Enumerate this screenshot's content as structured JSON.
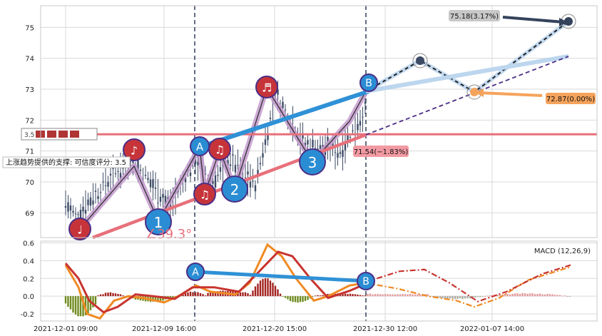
{
  "chart_data": [
    {
      "type": "candlestick",
      "y_ticks": [
        69,
        70,
        71,
        72,
        73,
        74,
        75
      ],
      "ylim": [
        68.2,
        75.7
      ],
      "x_tick_labels": [
        "2021-12-01 09:00",
        "2021-12-09 16:00",
        "2021-12-20 15:00",
        "2021-12-30 12:00",
        "2022-01-07 14:00"
      ],
      "support_line_label": "上涨趋势提供的支撑: 可信度评分: 3.5",
      "resistance_line_label": "3.5",
      "angle_label": "∠39.3°",
      "pivots": [
        {
          "label": "1",
          "kind": "number",
          "x": 2,
          "y": 68.7
        },
        {
          "label": "2",
          "kind": "number",
          "x": 29,
          "y": 69.95
        },
        {
          "label": "3",
          "kind": "number",
          "x": 48,
          "y": 70.95
        },
        {
          "label": "A",
          "kind": "letter",
          "x": 21,
          "y": 70.85
        },
        {
          "label": "B",
          "kind": "letter",
          "x": 55,
          "y": 72.95
        },
        {
          "label": "♩",
          "kind": "note",
          "x": -8,
          "y": 68.45
        },
        {
          "label": "♪",
          "kind": "note",
          "x": 13,
          "y": 70.95
        },
        {
          "label": "♫",
          "kind": "note",
          "x": 25,
          "y": 69.55
        },
        {
          "label": "♫",
          "kind": "note",
          "x": 30,
          "y": 70.85
        },
        {
          "label": "♬",
          "kind": "note",
          "x": 38,
          "y": 73.0
        }
      ],
      "forecast": [
        {
          "label": "75.18(3.17%)",
          "value": 75.18
        },
        {
          "label": "72.87(0.00%)",
          "value": 72.87
        },
        {
          "label": "71.54(−1.83%)",
          "value": 71.54
        }
      ],
      "horizontal_line": 71.54,
      "close": 72.87
    },
    {
      "type": "line",
      "title": "MACD (12,26,9)",
      "y_ticks": [
        -0.2,
        0.0,
        0.2,
        0.4,
        0.6
      ],
      "ylim": [
        -0.28,
        0.62
      ],
      "divergence_labels": [
        "A",
        "B"
      ]
    }
  ],
  "colors": {
    "candle": "#3d4b66",
    "zigzag": "#c49bcf",
    "trend_blue": "#2f91d6",
    "support_red": "#e8707b",
    "marker_blue": "#2a8dd4",
    "marker_red": "#c6343a",
    "macd_orange": "#f08a24",
    "signal_red": "#c8342f",
    "forecast_navy": "#34435c",
    "forecast_orange": "#f5a35c"
  }
}
